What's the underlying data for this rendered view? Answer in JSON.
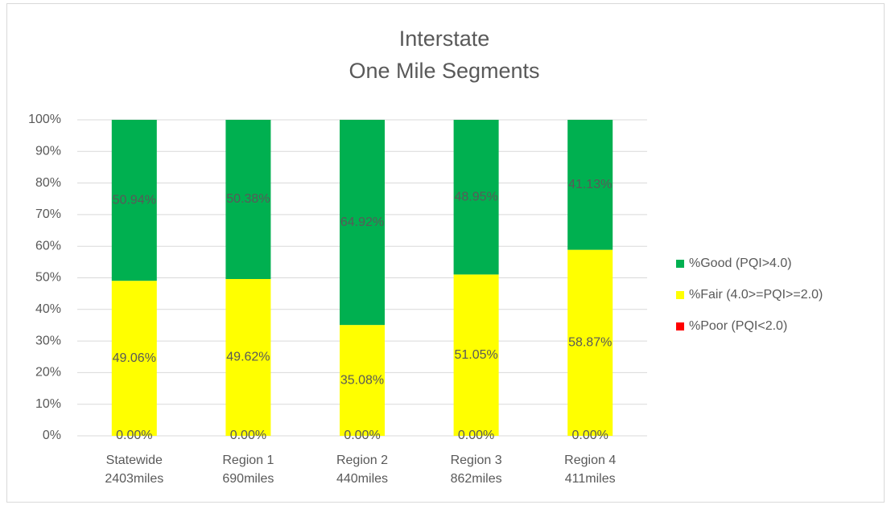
{
  "chart_data": {
    "type": "stacked_bar",
    "title": [
      "Interstate",
      "One Mile Segments"
    ],
    "categories": [
      [
        "Statewide",
        "2403miles"
      ],
      [
        "Region 1",
        "690miles"
      ],
      [
        "Region 2",
        "440miles"
      ],
      [
        "Region 3",
        "862miles"
      ],
      [
        "Region 4",
        "411miles"
      ]
    ],
    "series": [
      {
        "name": "%Poor (PQI<2.0)",
        "color": "#ff0000",
        "values": [
          0,
          0,
          0,
          0,
          0
        ],
        "value_labels": [
          "0.00%",
          "0.00%",
          "0.00%",
          "0.00%",
          "0.00%"
        ]
      },
      {
        "name": "%Fair (4.0>=PQI>=2.0)",
        "color": "#ffff00",
        "values": [
          49.06,
          49.62,
          35.08,
          51.05,
          58.87
        ],
        "value_labels": [
          "49.06%",
          "49.62%",
          "35.08%",
          "51.05%",
          "58.87%"
        ]
      },
      {
        "name": "%Good (PQI>4.0)",
        "color": "#00b050",
        "values": [
          50.94,
          50.38,
          64.92,
          48.95,
          41.13
        ],
        "value_labels": [
          "50.94%",
          "50.38%",
          "64.92%",
          "48.95%",
          "41.13%"
        ]
      }
    ],
    "ylim": [
      0,
      100
    ],
    "yticks": [
      {
        "value": 0,
        "label": "0%"
      },
      {
        "value": 10,
        "label": "10%"
      },
      {
        "value": 20,
        "label": "20%"
      },
      {
        "value": 30,
        "label": "30%"
      },
      {
        "value": 40,
        "label": "40%"
      },
      {
        "value": 50,
        "label": "50%"
      },
      {
        "value": 60,
        "label": "60%"
      },
      {
        "value": 70,
        "label": "70%"
      },
      {
        "value": 80,
        "label": "80%"
      },
      {
        "value": 90,
        "label": "90%"
      },
      {
        "value": 100,
        "label": "100%"
      }
    ],
    "grid": true,
    "legend": "right"
  }
}
